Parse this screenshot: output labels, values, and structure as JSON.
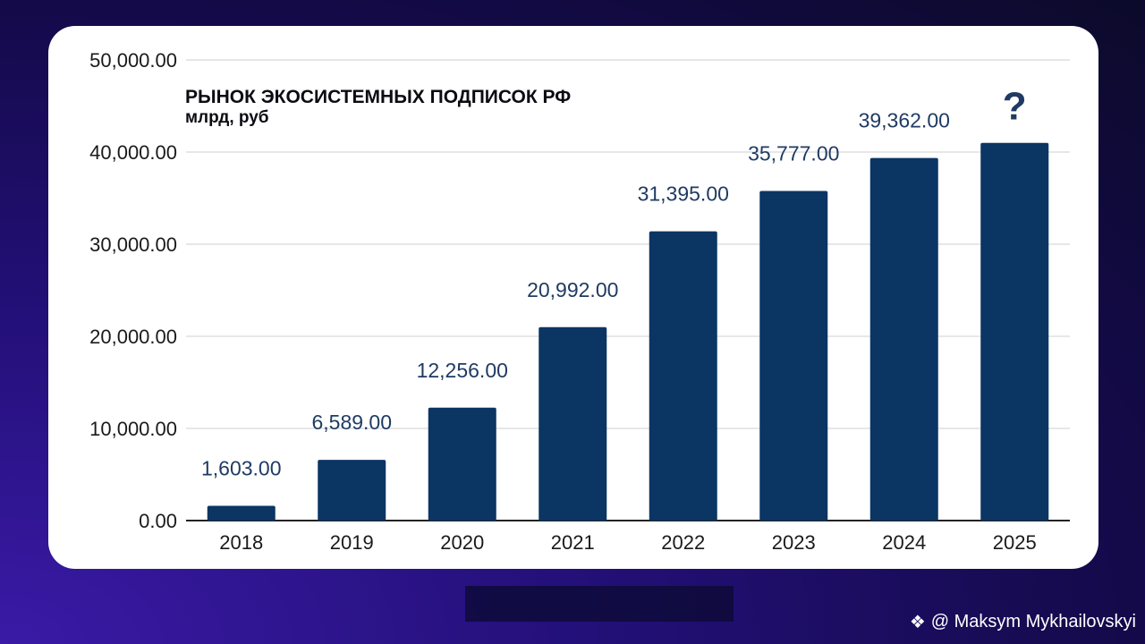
{
  "chart_data": {
    "type": "bar",
    "title": "РЫНОК ЭКОСИСТЕМНЫХ ПОДПИСОК РФ",
    "subtitle": "млрд, руб",
    "categories": [
      "2018",
      "2019",
      "2020",
      "2021",
      "2022",
      "2023",
      "2024",
      "2025"
    ],
    "values": [
      1603,
      6589,
      12256,
      20992,
      31395,
      35777,
      39362,
      41000
    ],
    "data_labels": [
      "1,603.00",
      "6,589.00",
      "12,256.00",
      "20,992.00",
      "31,395.00",
      "35,777.00",
      "39,362.00",
      "?"
    ],
    "y_ticks": [
      "0.00",
      "10,000.00",
      "20,000.00",
      "30,000.00",
      "40,000.00",
      "50,000.00"
    ],
    "ylim": [
      0,
      50000
    ],
    "grid": true,
    "colors": {
      "bar": "#0b3563",
      "label": "#1f3b63",
      "axis_text": "#1a1a1a",
      "grid": "#cfcfcf"
    }
  },
  "watermark": {
    "icon": "binance-diamond-icon",
    "text": "@ Maksym Mykhailovskyi"
  }
}
